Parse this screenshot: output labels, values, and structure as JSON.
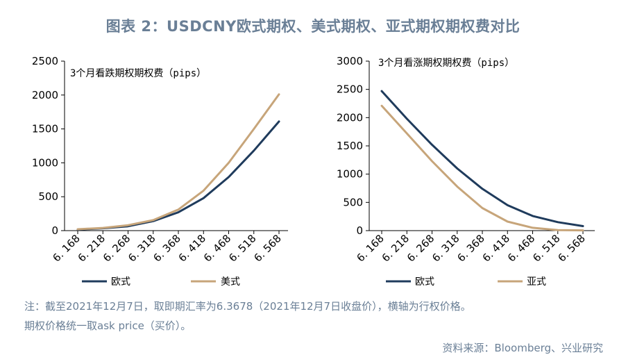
{
  "title": "图表 2：USDCNY欧式期权、美式期权、亚式期权期权费对比",
  "notes": [
    "注：截至2021年12月7日，取即期汇率为6.3678（2021年12月7日收盘价），横轴为行权价格。",
    "期权价格统一取ask price（买价）。"
  ],
  "source": "资料来源：Bloomberg、兴业研究",
  "chart_data": [
    {
      "type": "line",
      "title": "3个月看跌期权期权费（pips）",
      "categories": [
        "6.168",
        "6.218",
        "6.268",
        "6.318",
        "6.368",
        "6.418",
        "6.468",
        "6.518",
        "6.568"
      ],
      "ylim": [
        0,
        2500
      ],
      "yticks": [
        0,
        500,
        1000,
        1500,
        2000,
        2500
      ],
      "legend_position": "bottom",
      "grid": false,
      "series": [
        {
          "name": "欧式",
          "color": "#1f3b5c",
          "values": [
            15,
            35,
            65,
            140,
            270,
            480,
            790,
            1180,
            1610
          ]
        },
        {
          "name": "美式",
          "color": "#c7a57a",
          "values": [
            20,
            40,
            80,
            155,
            310,
            590,
            1000,
            1500,
            2010
          ]
        }
      ]
    },
    {
      "type": "line",
      "title": "3个月看涨期权期权费（pips）",
      "categories": [
        "6.168",
        "6.218",
        "6.268",
        "6.318",
        "6.368",
        "6.418",
        "6.468",
        "6.518",
        "6.568"
      ],
      "ylim": [
        0,
        3000
      ],
      "yticks": [
        0,
        500,
        1000,
        1500,
        2000,
        2500,
        3000
      ],
      "legend_position": "bottom",
      "grid": false,
      "series": [
        {
          "name": "欧式",
          "color": "#1f3b5c",
          "values": [
            2470,
            1980,
            1520,
            1100,
            740,
            450,
            260,
            150,
            80
          ]
        },
        {
          "name": "亚式",
          "color": "#c7a57a",
          "values": [
            2210,
            1720,
            1230,
            780,
            400,
            160,
            50,
            10,
            5
          ]
        }
      ]
    }
  ]
}
